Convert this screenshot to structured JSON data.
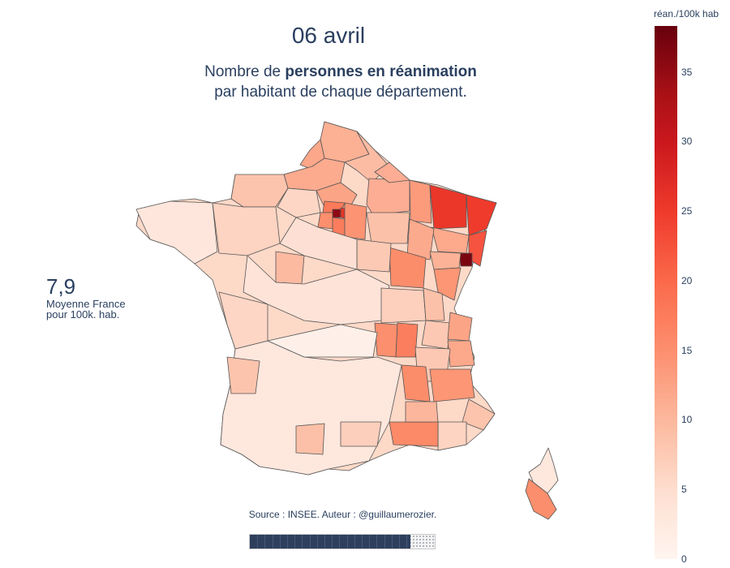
{
  "header": {
    "date": "06 avril",
    "subtitle_prefix": "Nombre de ",
    "subtitle_bold": "personnes en réanimation",
    "subtitle_line2": "par habitant de chaque département."
  },
  "average": {
    "value": "7,9",
    "line1": "Moyenne France",
    "line2": "pour 100k. hab."
  },
  "colorbar": {
    "title": "réan./100k hab",
    "ticks": [
      "35",
      "30",
      "25",
      "20",
      "15",
      "10",
      "5",
      "0"
    ],
    "min": 0,
    "max": 38.3,
    "colors": [
      "#fff5f0",
      "#fee0d2",
      "#fcbba1",
      "#fc9272",
      "#fb6a4a",
      "#ef3b2c",
      "#cb181d",
      "#a50f15",
      "#67000d"
    ]
  },
  "source": "Source : INSEE. Auteur : @guillaumerozier.",
  "slider": {
    "progress": 0.87
  },
  "map": {
    "border_color": "#555555"
  }
}
